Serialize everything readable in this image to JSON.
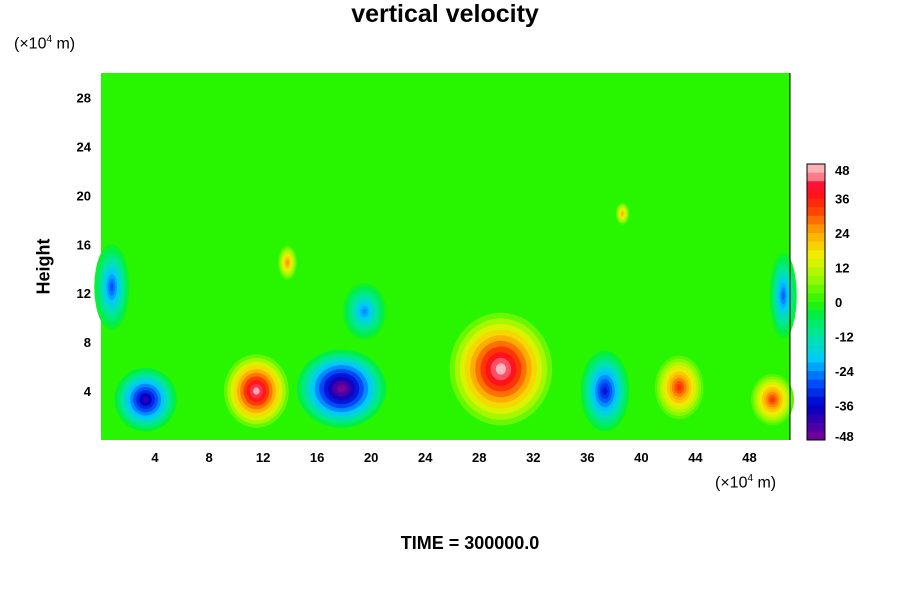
{
  "chart_data": {
    "type": "heatmap",
    "title": "vertical velocity",
    "ylabel": "Height",
    "x_unit": {
      "prefix": "(×10",
      "exp": "4",
      "suffix": " m)"
    },
    "y_unit": {
      "prefix": "(×10",
      "exp": "4",
      "suffix": " m)"
    },
    "xlim": [
      0,
      51
    ],
    "ylim": [
      0,
      30
    ],
    "x_ticks": [
      4,
      8,
      12,
      16,
      20,
      24,
      28,
      32,
      36,
      40,
      44,
      48
    ],
    "y_ticks": [
      4,
      8,
      12,
      16,
      20,
      24,
      28
    ],
    "colorbar": {
      "min": -48,
      "max": 48,
      "ticks": [
        48,
        36,
        24,
        12,
        0,
        -12,
        -24,
        -36,
        -48
      ]
    },
    "background_value": 0,
    "features": [
      {
        "x": 3.3,
        "y": 3.3,
        "value": -40,
        "rx": 2.3,
        "ry": 2.6
      },
      {
        "x": 11.5,
        "y": 4.0,
        "value": 46,
        "rx": 2.4,
        "ry": 3.0
      },
      {
        "x": 17.8,
        "y": 4.2,
        "value": -48,
        "rx": 3.3,
        "ry": 3.2
      },
      {
        "x": 29.6,
        "y": 5.8,
        "value": 47,
        "rx": 3.8,
        "ry": 4.6
      },
      {
        "x": 37.3,
        "y": 4.0,
        "value": -34,
        "rx": 1.8,
        "ry": 3.3
      },
      {
        "x": 42.8,
        "y": 4.3,
        "value": 34,
        "rx": 1.8,
        "ry": 2.6
      },
      {
        "x": 49.7,
        "y": 3.3,
        "value": 33,
        "rx": 1.6,
        "ry": 2.1
      },
      {
        "x": 0.8,
        "y": 12.5,
        "value": -28,
        "rx": 1.3,
        "ry": 3.5
      },
      {
        "x": 50.5,
        "y": 11.8,
        "value": -27,
        "rx": 1.0,
        "ry": 3.5
      },
      {
        "x": 13.8,
        "y": 14.5,
        "value": 26,
        "rx": 0.7,
        "ry": 1.4
      },
      {
        "x": 38.6,
        "y": 18.5,
        "value": 24,
        "rx": 0.5,
        "ry": 0.9
      },
      {
        "x": 19.5,
        "y": 10.5,
        "value": -24,
        "rx": 1.6,
        "ry": 2.3
      }
    ]
  },
  "time_label": "TIME = 300000.0"
}
